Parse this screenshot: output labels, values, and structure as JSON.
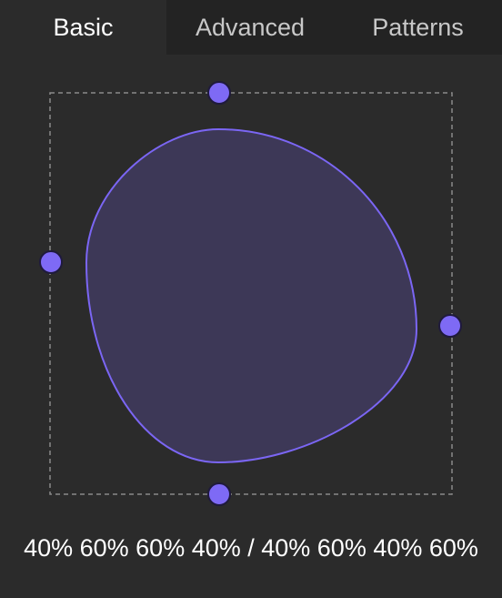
{
  "tabs": [
    {
      "label": "Basic",
      "active": true
    },
    {
      "label": "Advanced",
      "active": false
    },
    {
      "label": "Patterns",
      "active": false
    }
  ],
  "shape": {
    "radius": {
      "horizontal": [
        40,
        60,
        60,
        40
      ],
      "vertical": [
        40,
        60,
        40,
        60
      ]
    },
    "fill_color": "#3d3857",
    "stroke_color": "#7b66f4",
    "handle_color": "#7e6af5"
  },
  "output": {
    "value": "40% 60% 60% 40% / 40% 60% 40% 60%"
  },
  "colors": {
    "background": "#2b2b2b",
    "inactive_tab": "#232323",
    "guide": "#8a8a8a"
  }
}
